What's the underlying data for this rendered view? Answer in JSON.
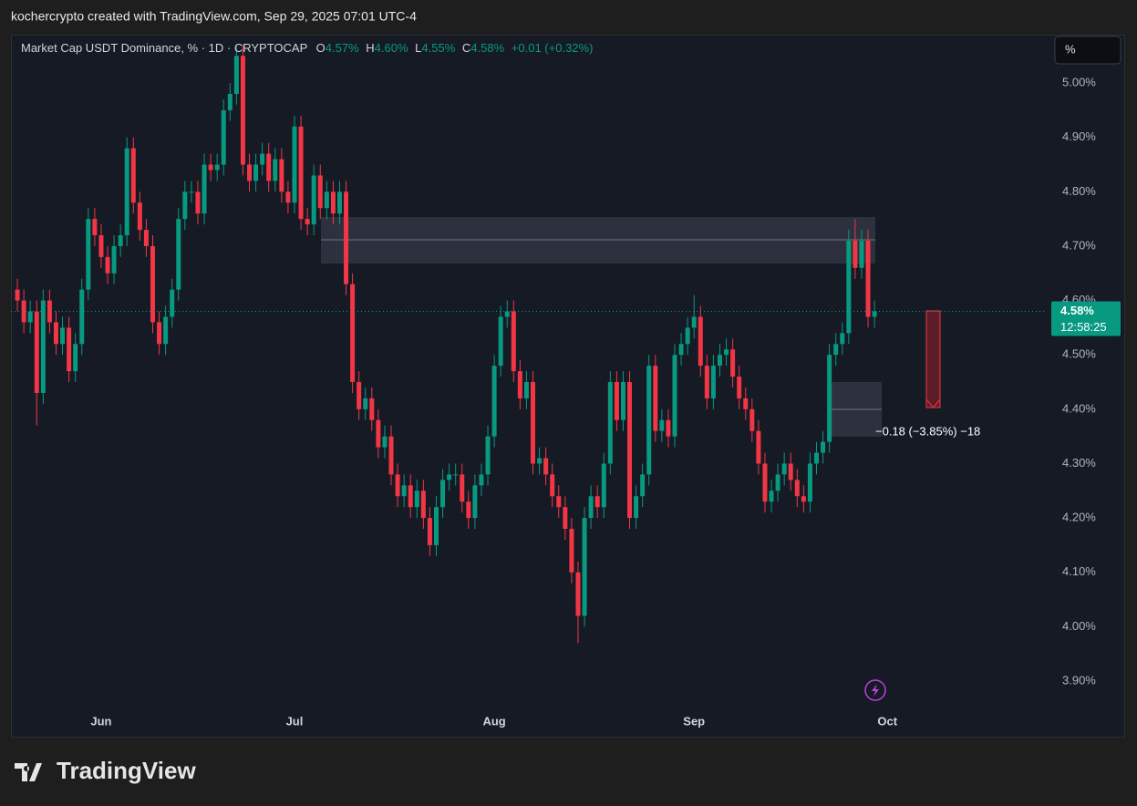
{
  "header": {
    "attribution": "kochercrypto created with TradingView.com, Sep 29, 2025 07:01 UTC-4"
  },
  "chart_data": {
    "type": "candlestick",
    "title": "Market Cap USDT Dominance, % · 1D · CRYPTOCAP",
    "ohlc_legend": [
      {
        "label": "O",
        "value": "4.57%"
      },
      {
        "label": "H",
        "value": "4.60%"
      },
      {
        "label": "L",
        "value": "4.55%"
      },
      {
        "label": "C",
        "value": "4.58%"
      }
    ],
    "change": "+0.01 (+0.32%)",
    "open": [
      4.62,
      4.6,
      4.56,
      4.58,
      4.43,
      4.6,
      4.56,
      4.52,
      4.55,
      4.47,
      4.52,
      4.62,
      4.75,
      4.72,
      4.68,
      4.65,
      4.7,
      4.72,
      4.88,
      4.78,
      4.73,
      4.7,
      4.56,
      4.52,
      4.57,
      4.62,
      4.75,
      4.8,
      4.8,
      4.76,
      4.85,
      4.84,
      4.85,
      4.95,
      4.98,
      5.05,
      4.85,
      4.82,
      4.85,
      4.87,
      4.82,
      4.86,
      4.8,
      4.78,
      4.92,
      4.75,
      4.74,
      4.83,
      4.77,
      4.8,
      4.76,
      4.8,
      4.63,
      4.45,
      4.4,
      4.42,
      4.38,
      4.33,
      4.35,
      4.28,
      4.24,
      4.26,
      4.22,
      4.25,
      4.2,
      4.15,
      4.22,
      4.27,
      4.28,
      4.28,
      4.23,
      4.2,
      4.26,
      4.28,
      4.35,
      4.48,
      4.57,
      4.58,
      4.47,
      4.42,
      4.45,
      4.3,
      4.31,
      4.28,
      4.24,
      4.22,
      4.18,
      4.1,
      4.02,
      4.2,
      4.24,
      4.22,
      4.3,
      4.45,
      4.38,
      4.45,
      4.2,
      4.24,
      4.28,
      4.48,
      4.36,
      4.38,
      4.35,
      4.5,
      4.52,
      4.55,
      4.57,
      4.48,
      4.42,
      4.48,
      4.5,
      4.51,
      4.46,
      4.42,
      4.4,
      4.36,
      4.3,
      4.23,
      4.25,
      4.28,
      4.3,
      4.27,
      4.24,
      4.23,
      4.3,
      4.32,
      4.34,
      4.5,
      4.52,
      4.54,
      4.71,
      4.66,
      4.71,
      4.57
    ],
    "high": [
      4.64,
      4.62,
      4.6,
      4.6,
      4.62,
      4.62,
      4.58,
      4.57,
      4.57,
      4.54,
      4.64,
      4.77,
      4.77,
      4.74,
      4.7,
      4.72,
      4.74,
      4.9,
      4.9,
      4.8,
      4.75,
      4.72,
      4.58,
      4.59,
      4.64,
      4.77,
      4.82,
      4.82,
      4.82,
      4.87,
      4.87,
      4.87,
      4.97,
      5.0,
      5.07,
      5.07,
      4.87,
      4.87,
      4.89,
      4.89,
      4.88,
      4.88,
      4.82,
      4.94,
      4.94,
      4.77,
      4.85,
      4.85,
      4.82,
      4.82,
      4.82,
      4.82,
      4.65,
      4.47,
      4.44,
      4.44,
      4.4,
      4.37,
      4.37,
      4.3,
      4.28,
      4.28,
      4.27,
      4.27,
      4.22,
      4.24,
      4.29,
      4.3,
      4.3,
      4.3,
      4.25,
      4.28,
      4.3,
      4.37,
      4.5,
      4.59,
      4.6,
      4.6,
      4.49,
      4.47,
      4.47,
      4.33,
      4.33,
      4.3,
      4.26,
      4.24,
      4.2,
      4.12,
      4.22,
      4.26,
      4.26,
      4.32,
      4.47,
      4.47,
      4.47,
      4.47,
      4.26,
      4.3,
      4.5,
      4.5,
      4.4,
      4.4,
      4.52,
      4.54,
      4.57,
      4.61,
      4.59,
      4.5,
      4.5,
      4.52,
      4.53,
      4.53,
      4.48,
      4.44,
      4.42,
      4.38,
      4.32,
      4.27,
      4.3,
      4.32,
      4.32,
      4.29,
      4.26,
      4.32,
      4.34,
      4.36,
      4.52,
      4.54,
      4.56,
      4.73,
      4.75,
      4.73,
      4.73,
      4.6
    ],
    "low": [
      4.58,
      4.54,
      4.54,
      4.37,
      4.41,
      4.54,
      4.5,
      4.5,
      4.45,
      4.45,
      4.5,
      4.6,
      4.7,
      4.66,
      4.63,
      4.63,
      4.68,
      4.7,
      4.76,
      4.71,
      4.68,
      4.54,
      4.5,
      4.5,
      4.55,
      4.6,
      4.73,
      4.78,
      4.74,
      4.74,
      4.82,
      4.82,
      4.83,
      4.93,
      4.96,
      4.83,
      4.8,
      4.8,
      4.83,
      4.8,
      4.8,
      4.78,
      4.76,
      4.76,
      4.73,
      4.72,
      4.72,
      4.75,
      4.75,
      4.74,
      4.74,
      4.61,
      4.43,
      4.38,
      4.38,
      4.36,
      4.31,
      4.31,
      4.26,
      4.22,
      4.22,
      4.2,
      4.2,
      4.18,
      4.13,
      4.13,
      4.2,
      4.25,
      4.26,
      4.21,
      4.18,
      4.18,
      4.24,
      4.26,
      4.33,
      4.46,
      4.55,
      4.45,
      4.4,
      4.4,
      4.28,
      4.28,
      4.26,
      4.22,
      4.2,
      4.16,
      4.08,
      3.97,
      4.0,
      4.18,
      4.2,
      4.2,
      4.28,
      4.36,
      4.36,
      4.18,
      4.18,
      4.22,
      4.26,
      4.34,
      4.34,
      4.33,
      4.33,
      4.48,
      4.5,
      4.53,
      4.46,
      4.4,
      4.4,
      4.46,
      4.48,
      4.44,
      4.4,
      4.38,
      4.34,
      4.28,
      4.21,
      4.21,
      4.23,
      4.26,
      4.25,
      4.22,
      4.21,
      4.21,
      4.28,
      4.3,
      4.32,
      4.48,
      4.5,
      4.52,
      4.64,
      4.64,
      4.55,
      4.55
    ],
    "close": [
      4.6,
      4.56,
      4.58,
      4.43,
      4.6,
      4.56,
      4.52,
      4.55,
      4.47,
      4.52,
      4.62,
      4.75,
      4.72,
      4.68,
      4.65,
      4.7,
      4.72,
      4.88,
      4.78,
      4.73,
      4.7,
      4.56,
      4.52,
      4.57,
      4.62,
      4.75,
      4.8,
      4.8,
      4.76,
      4.85,
      4.84,
      4.85,
      4.95,
      4.98,
      5.05,
      4.85,
      4.82,
      4.85,
      4.87,
      4.82,
      4.86,
      4.8,
      4.78,
      4.92,
      4.75,
      4.74,
      4.83,
      4.77,
      4.8,
      4.76,
      4.8,
      4.63,
      4.45,
      4.4,
      4.42,
      4.38,
      4.33,
      4.35,
      4.28,
      4.24,
      4.26,
      4.22,
      4.25,
      4.2,
      4.15,
      4.22,
      4.27,
      4.28,
      4.28,
      4.23,
      4.2,
      4.26,
      4.28,
      4.35,
      4.48,
      4.57,
      4.58,
      4.47,
      4.42,
      4.45,
      4.3,
      4.31,
      4.28,
      4.24,
      4.22,
      4.18,
      4.1,
      4.02,
      4.2,
      4.24,
      4.22,
      4.3,
      4.45,
      4.38,
      4.45,
      4.2,
      4.24,
      4.28,
      4.48,
      4.36,
      4.38,
      4.35,
      4.5,
      4.52,
      4.55,
      4.57,
      4.48,
      4.42,
      4.48,
      4.5,
      4.51,
      4.46,
      4.42,
      4.4,
      4.36,
      4.3,
      4.23,
      4.25,
      4.28,
      4.3,
      4.27,
      4.24,
      4.23,
      4.3,
      4.32,
      4.34,
      4.5,
      4.52,
      4.54,
      4.71,
      4.66,
      4.71,
      4.57,
      4.58
    ],
    "up_color": "#089981",
    "down_color": "#f23645",
    "xlim": [
      -1,
      159.3
    ],
    "xticks": [
      {
        "value": 13,
        "label": "Jun"
      },
      {
        "value": 43,
        "label": "Jul"
      },
      {
        "value": 74,
        "label": "Aug"
      },
      {
        "value": 105,
        "label": "Sep"
      },
      {
        "value": 135,
        "label": "Oct"
      }
    ],
    "ylim": [
      3.853,
      5.089
    ],
    "yticks": [
      {
        "value": 3.9,
        "label": "3.90%"
      },
      {
        "value": 4.0,
        "label": "4.00%"
      },
      {
        "value": 4.1,
        "label": "4.10%"
      },
      {
        "value": 4.2,
        "label": "4.20%"
      },
      {
        "value": 4.3,
        "label": "4.30%"
      },
      {
        "value": 4.4,
        "label": "4.40%"
      },
      {
        "value": 4.5,
        "label": "4.50%"
      },
      {
        "value": 4.6,
        "label": "4.60%"
      },
      {
        "value": 4.7,
        "label": "4.70%"
      },
      {
        "value": 4.8,
        "label": "4.80%"
      },
      {
        "value": 4.9,
        "label": "4.90%"
      },
      {
        "value": 5.0,
        "label": "5.00%"
      }
    ],
    "grid": false,
    "last_price_label": "4.58%",
    "countdown": "12:58:25",
    "annotation": "−0.18 (−3.85%) −18",
    "scale_button": "%"
  },
  "footer": {
    "brand": "TradingView"
  }
}
